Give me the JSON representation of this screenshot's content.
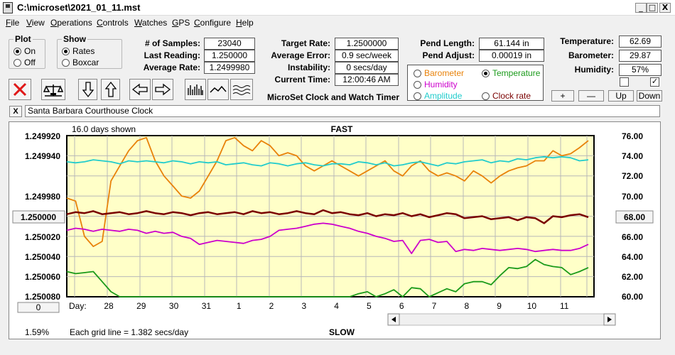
{
  "window": {
    "title": "C:\\microset\\2021_01_11.mst",
    "min": "_",
    "max": "□",
    "close": "X"
  },
  "menu": [
    {
      "key": "F",
      "rest": "ile"
    },
    {
      "key": "V",
      "rest": "iew"
    },
    {
      "key": "O",
      "rest": "perations"
    },
    {
      "key": "C",
      "rest": "ontrols"
    },
    {
      "key": "W",
      "rest": "atches"
    },
    {
      "key": "G",
      "rest": "PS"
    },
    {
      "key": "C",
      "rest": "onfigure"
    },
    {
      "key": "H",
      "rest": "elp"
    }
  ],
  "plot": {
    "label": "Plot",
    "on": "On",
    "off": "Off",
    "selected": "On"
  },
  "show": {
    "label": "Show",
    "rates": "Rates",
    "boxcar": "Boxcar",
    "selected": "Rates"
  },
  "stats": {
    "samples_label": "# of Samples:",
    "samples": "23040",
    "last_label": "Last Reading:",
    "last": "1.250000",
    "avg_label": "Average Rate:",
    "avg": "1.2499980",
    "target_label": "Target Rate:",
    "target": "1.2500000",
    "avgerr_label": "Average Error:",
    "avgerr": "0.9 sec/week",
    "instab_label": "Instability:",
    "instab": "0 secs/day",
    "time_label": "Current Time:",
    "time": "12:00:46 AM",
    "pendlen_label": "Pend Length:",
    "pendlen": "61.144 in",
    "pendadj_label": "Pend Adjust:",
    "pendadj": "0.00019 in",
    "temp_label": "Temperature:",
    "temp": "62.69",
    "baro_label": "Barometer:",
    "baro": "29.87",
    "hum_label": "Humidity:",
    "hum": "57%"
  },
  "app_name": "MicroSet Clock and Watch Timer",
  "sensor_select": {
    "barometer": "Barometer",
    "temperature": "Temperature",
    "humidity": "Humidity",
    "amplitude": "Amplitude",
    "clockrate": "Clock rate",
    "selected": "Temperature",
    "colors": {
      "barometer": "#e8820a",
      "temperature": "#1a9a1a",
      "humidity": "#cc00cc",
      "amplitude": "#22cccc",
      "clockrate": "#7a0000"
    }
  },
  "scale_buttons": {
    "plus": "+",
    "minus": "—",
    "up": "Up",
    "down": "Down"
  },
  "checkboxes": {
    "left": "",
    "right": "✓"
  },
  "description": {
    "close": "X",
    "text": "Santa Barbara Courthouse Clock"
  },
  "chart_data": {
    "type": "line",
    "days_shown": "16.0 days shown",
    "top_label": "FAST",
    "bottom_label": "SLOW",
    "grid_note": "Each grid line = 1.382 secs/day",
    "percent": "1.59%",
    "xlabel": "Day:",
    "days": [
      "28",
      "29",
      "30",
      "31",
      "1",
      "2",
      "3",
      "4",
      "5",
      "6",
      "7",
      "8",
      "9",
      "10",
      "11"
    ],
    "ylim_left": [
      1.24992,
      1.25008
    ],
    "left_ticks": [
      "1.249920",
      "1.249940",
      "1.249980",
      "1.250000",
      "1.250020",
      "1.250040",
      "1.250060",
      "1.250080"
    ],
    "left_center": "1.250000",
    "right_ticks": [
      "76.00",
      "74.00",
      "72.00",
      "70.00",
      "68.00",
      "66.00",
      "64.00",
      "62.00",
      "60.00"
    ],
    "right_center": "68.00",
    "left_button": "0",
    "series": [
      {
        "name": "Barometer",
        "color": "#e8820a",
        "values": [
          69.8,
          69.5,
          66,
          65,
          65.5,
          71.5,
          73,
          74.5,
          75.5,
          75.8,
          73.5,
          72,
          71,
          70,
          69.8,
          70.5,
          72,
          73.5,
          75.5,
          75.8,
          75,
          74.5,
          75.5,
          75,
          74,
          74.3,
          74,
          73,
          72.5,
          73,
          73.5,
          73,
          72.5,
          72,
          72.5,
          73,
          73.5,
          72.5,
          72,
          73,
          73.5,
          72.5,
          72,
          72.3,
          72,
          71.5,
          72.5,
          72,
          71.3,
          72,
          72.5,
          72.8,
          73,
          73.5,
          73.5,
          74.5,
          74,
          74.2,
          74.8,
          75.5
        ]
      },
      {
        "name": "Humidity",
        "color": "#cc00cc",
        "values": [
          66.6,
          66.8,
          66.7,
          66.5,
          66.7,
          66.6,
          66.5,
          66.7,
          66.6,
          66.3,
          66.5,
          66.3,
          66.4,
          66,
          65.8,
          65.2,
          65.4,
          65.6,
          65.5,
          65.4,
          65.3,
          65.6,
          65.7,
          66,
          66.6,
          66.7,
          66.8,
          67,
          67.2,
          67.3,
          67.2,
          67,
          66.8,
          66.5,
          66.3,
          66,
          65.8,
          65.5,
          65.6,
          64.3,
          65.6,
          65.7,
          65.4,
          65.5,
          64.5,
          64.7,
          64.6,
          64.8,
          64.7,
          64.6,
          64.7,
          64.8,
          64.7,
          64.5,
          64.6,
          64.7,
          64.6,
          64.6,
          64.8,
          65.2
        ]
      },
      {
        "name": "Temperature",
        "color": "#1a9a1a",
        "values": [
          62.5,
          62.3,
          62.4,
          62.5,
          61.5,
          60.5,
          60,
          60,
          60,
          60,
          60,
          60,
          60,
          60,
          60,
          60,
          60,
          60,
          60,
          60,
          60,
          60,
          60,
          60,
          60,
          60,
          60,
          60,
          60,
          60,
          60,
          60,
          60,
          60.3,
          60.5,
          60,
          60.3,
          60.7,
          60,
          60.9,
          60.8,
          60,
          60.4,
          60.8,
          60.5,
          61.3,
          61.5,
          61.5,
          61.2,
          62.1,
          62.9,
          62.8,
          63,
          63.7,
          63.2,
          63.0,
          62.9,
          62.2,
          62.5,
          62.9
        ]
      },
      {
        "name": "Amplitude",
        "color": "#22cccc",
        "values": [
          73.4,
          73.3,
          73.4,
          73.6,
          73.5,
          73.4,
          73.2,
          73.5,
          73.4,
          73.5,
          73.4,
          73.3,
          73.5,
          73.4,
          73.2,
          73.4,
          73.3,
          73.4,
          73.1,
          73.2,
          73.3,
          73.1,
          73.0,
          73.3,
          73.2,
          73.0,
          73.2,
          73.3,
          73.1,
          73.0,
          73.2,
          73.2,
          73.1,
          73.4,
          73.3,
          73.1,
          73.3,
          73.0,
          73.1,
          73.3,
          73.4,
          73.2,
          73.0,
          73.3,
          73.2,
          73.4,
          73.5,
          73.6,
          73.3,
          73.5,
          73.4,
          73.7,
          73.6,
          73.8,
          73.9,
          73.8,
          73.9,
          73.8,
          73.5,
          73.6
        ]
      },
      {
        "name": "Clock rate",
        "color": "#7a0000",
        "values": [
          68.2,
          68.4,
          68.3,
          68.5,
          68.2,
          68.3,
          68.4,
          68.2,
          68.3,
          68.5,
          68.3,
          68.2,
          68.4,
          68.3,
          68.1,
          68.3,
          68.4,
          68.2,
          68.3,
          68.4,
          68.2,
          68.5,
          68.3,
          68.4,
          68.2,
          68.3,
          68.5,
          68.3,
          68.2,
          68.6,
          68.3,
          68.4,
          68.2,
          68.1,
          68.3,
          68.0,
          68.2,
          68.1,
          68.3,
          68.0,
          68.2,
          67.9,
          68.1,
          68.3,
          68.2,
          67.8,
          67.9,
          68.0,
          67.7,
          67.8,
          67.9,
          67.6,
          67.9,
          67.8,
          67.3,
          68.0,
          67.9,
          68.1,
          68.2,
          67.9
        ]
      }
    ]
  }
}
